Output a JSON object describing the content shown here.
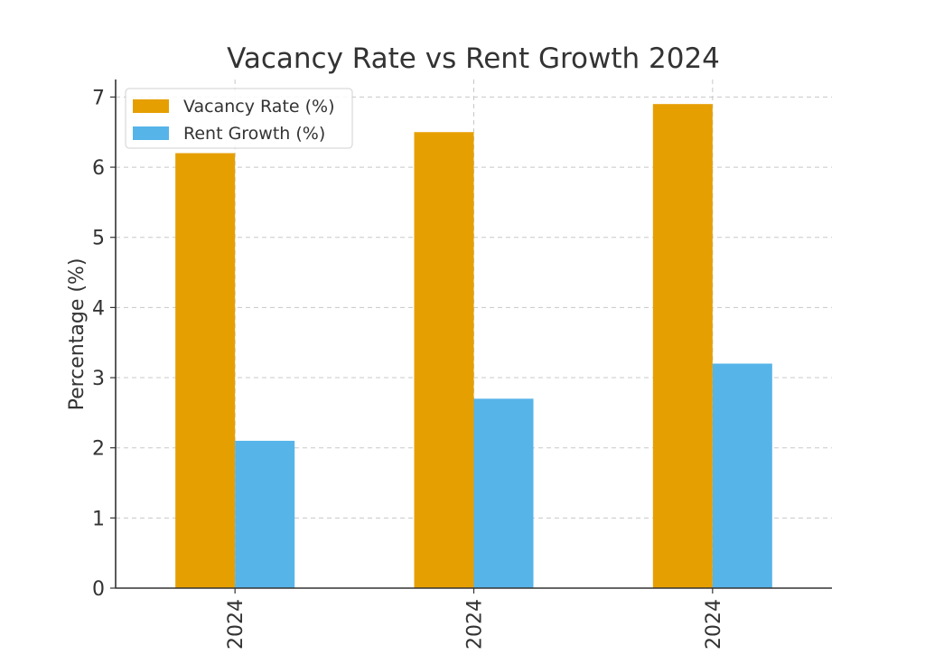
{
  "chart_data": {
    "type": "bar",
    "title": "Vacancy Rate vs Rent Growth 2024",
    "xlabel": "",
    "ylabel": "Percentage (%)",
    "categories": [
      "2024",
      "2024",
      "2024"
    ],
    "series": [
      {
        "name": "Vacancy Rate (%)",
        "values": [
          6.2,
          6.5,
          6.9
        ],
        "color": "#E69F00"
      },
      {
        "name": "Rent Growth (%)",
        "values": [
          2.1,
          2.7,
          3.2
        ],
        "color": "#56B4E9"
      }
    ],
    "ylim": [
      0,
      7.25
    ],
    "yticks": [
      0,
      1,
      2,
      3,
      4,
      5,
      6,
      7
    ],
    "grid": true,
    "legend_position": "top-left",
    "x_tick_rotation": "vertical"
  }
}
